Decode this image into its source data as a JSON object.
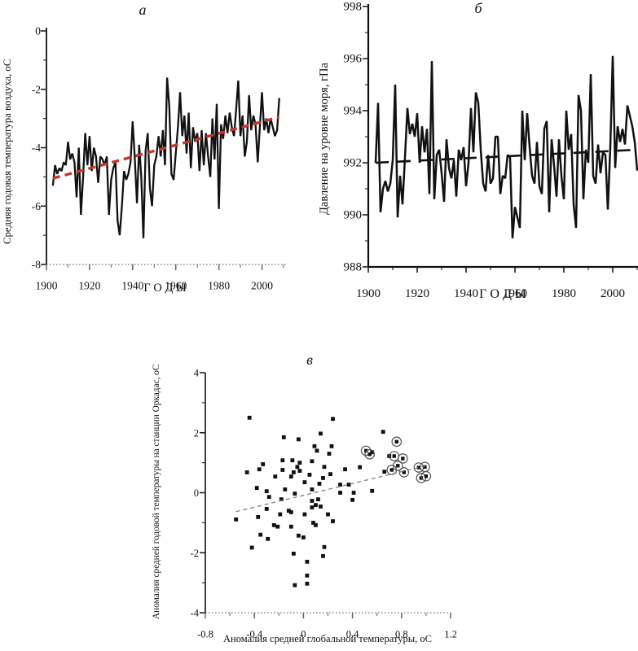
{
  "figure": {
    "background": "#ffffff"
  },
  "chart_data": [
    {
      "id": "a",
      "type": "line",
      "title": "а",
      "xlabel": "Г О Д Ы",
      "ylabel": "Средняя годовая температура воздуха, оС",
      "xlim": [
        1900,
        2010
      ],
      "ylim": [
        -8,
        0
      ],
      "xticks": [
        1900,
        1920,
        1940,
        1960,
        1980,
        2000
      ],
      "yticks": [
        0,
        -2,
        -4,
        -6,
        -8
      ],
      "grid": false,
      "legend": "none",
      "x_start": 1903,
      "x_step": 1,
      "series": [
        {
          "name": "annual-mean-air-temperature",
          "color": "#111111",
          "values": [
            -5.3,
            -4.6,
            -4.9,
            -4.7,
            -4.8,
            -4.5,
            -4.6,
            -3.8,
            -4.4,
            -4.2,
            -4.5,
            -5.7,
            -4.0,
            -6.3,
            -5.0,
            -3.5,
            -4.6,
            -3.6,
            -4.8,
            -4.0,
            -4.3,
            -5.2,
            -4.3,
            -4.4,
            -4.6,
            -4.3,
            -6.3,
            -5.1,
            -4.7,
            -4.5,
            -6.5,
            -7.0,
            -6.0,
            -4.8,
            -5.1,
            -4.9,
            -4.5,
            -3.1,
            -4.4,
            -5.9,
            -3.9,
            -5.0,
            -7.1,
            -4.1,
            -3.5,
            -5.4,
            -6.0,
            -4.6,
            -4.3,
            -3.6,
            -4.3,
            -3.4,
            -4.6,
            -1.6,
            -2.6,
            -4.9,
            -5.1,
            -4.2,
            -3.3,
            -2.1,
            -3.6,
            -2.9,
            -4.2,
            -2.8,
            -4.7,
            -3.3,
            -3.8,
            -3.5,
            -4.8,
            -3.4,
            -4.6,
            -3.5,
            -4.3,
            -5.0,
            -3.0,
            -4.4,
            -2.5,
            -6.1,
            -3.2,
            -3.7,
            -2.9,
            -3.5,
            -2.8,
            -3.3,
            -3.6,
            -2.7,
            -1.7,
            -3.6,
            -2.9,
            -4.3,
            -3.8,
            -2.2,
            -3.4,
            -2.9,
            -3.2,
            -4.5,
            -3.3,
            -2.1,
            -3.4,
            -3.0,
            -3.5,
            -3.0,
            -3.3,
            -3.6,
            -3.4,
            -2.3
          ]
        }
      ],
      "trend": {
        "name": "linear-trend",
        "color": "#c0392b",
        "x": [
          1903,
          2008
        ],
        "y": [
          -5.05,
          -2.95
        ]
      }
    },
    {
      "id": "b",
      "type": "line",
      "title": "б",
      "xlabel": "Г О Д Ы",
      "ylabel": "Давление на уровне моря, гПа",
      "xlim": [
        1900,
        2010
      ],
      "ylim": [
        988,
        998
      ],
      "xticks": [
        1900,
        1920,
        1940,
        1960,
        1980,
        2000
      ],
      "yticks": [
        998,
        996,
        994,
        992,
        990,
        988
      ],
      "grid": false,
      "legend": "none",
      "x_start": 1903,
      "x_step": 1,
      "series": [
        {
          "name": "sea-level-pressure",
          "color": "#111111",
          "values": [
            992.0,
            994.3,
            990.1,
            991.0,
            991.3,
            990.9,
            991.2,
            992.1,
            995.0,
            989.9,
            991.5,
            990.4,
            992.2,
            994.1,
            993.1,
            993.5,
            993.0,
            993.9,
            992.0,
            993.4,
            992.4,
            993.3,
            990.8,
            995.9,
            990.6,
            992.3,
            992.5,
            991.6,
            990.5,
            992.9,
            991.8,
            991.4,
            992.1,
            990.7,
            992.5,
            992.1,
            992.6,
            991.1,
            992.0,
            994.1,
            992.4,
            994.7,
            994.3,
            992.5,
            991.2,
            990.9,
            992.3,
            991.2,
            991.4,
            993.0,
            993.0,
            990.8,
            991.5,
            991.4,
            992.3,
            992.2,
            989.1,
            990.3,
            989.9,
            989.5,
            994.0,
            992.1,
            993.9,
            992.6,
            991.5,
            991.2,
            992.8,
            991.1,
            990.8,
            993.3,
            993.6,
            990.1,
            992.9,
            991.9,
            990.7,
            992.9,
            991.5,
            990.6,
            994.0,
            992.5,
            993.1,
            990.4,
            989.5,
            994.6,
            994.0,
            990.6,
            992.5,
            992.0,
            995.4,
            991.5,
            991.2,
            992.7,
            991.6,
            992.4,
            992.3,
            990.2,
            992.6,
            996.1,
            991.8,
            993.4,
            992.8,
            993.3,
            992.7,
            994.2,
            993.8,
            993.4,
            992.8,
            991.7
          ]
        }
      ],
      "trend": {
        "name": "linear-trend",
        "color": "#111111",
        "x": [
          1903,
          2010
        ],
        "y": [
          992.0,
          992.5
        ]
      }
    },
    {
      "id": "v",
      "type": "scatter",
      "title": "в",
      "xlabel": "Аномалия средней глобальной температуры, оС",
      "ylabel": "Аномалия средней годовой температуры на станции Оркадас, оС",
      "xlim": [
        -0.8,
        1.2
      ],
      "ylim": [
        -4,
        4
      ],
      "xticks": [
        -0.8,
        -0.4,
        0,
        0.4,
        0.8,
        1.2
      ],
      "yticks": [
        4,
        2,
        0,
        -2,
        -4
      ],
      "grid": false,
      "legend": "none",
      "colors": {
        "point": "#111111",
        "ring": "#555555"
      },
      "points": [
        [
          -0.55,
          -0.89
        ],
        [
          -0.46,
          0.68
        ],
        [
          -0.44,
          2.5
        ],
        [
          -0.42,
          -1.83
        ],
        [
          -0.38,
          0.16
        ],
        [
          -0.37,
          -0.81
        ],
        [
          -0.36,
          0.78
        ],
        [
          -0.35,
          -1.4
        ],
        [
          -0.33,
          0.95
        ],
        [
          -0.3,
          0.05
        ],
        [
          -0.3,
          -0.54
        ],
        [
          -0.29,
          -1.54
        ],
        [
          -0.28,
          -0.14
        ],
        [
          -0.24,
          -1.08
        ],
        [
          -0.23,
          0.54
        ],
        [
          -0.21,
          -1.13
        ],
        [
          -0.19,
          -0.72
        ],
        [
          -0.18,
          -0.22
        ],
        [
          -0.17,
          1.08
        ],
        [
          -0.17,
          0.76
        ],
        [
          -0.16,
          1.85
        ],
        [
          -0.15,
          0.11
        ],
        [
          -0.12,
          -0.6
        ],
        [
          -0.1,
          0.54
        ],
        [
          -0.1,
          -0.65
        ],
        [
          -0.1,
          -1.13
        ],
        [
          -0.09,
          1.08
        ],
        [
          -0.08,
          0.68
        ],
        [
          -0.08,
          -2.03
        ],
        [
          -0.07,
          -0.03
        ],
        [
          -0.07,
          -3.08
        ],
        [
          -0.05,
          0.86
        ],
        [
          -0.04,
          1.78
        ],
        [
          -0.04,
          -1.43
        ],
        [
          -0.03,
          1.0
        ],
        [
          -0.03,
          0.73
        ],
        [
          0,
          -1.49
        ],
        [
          0.01,
          -0.72
        ],
        [
          0.01,
          0.35
        ],
        [
          0.03,
          -2.3
        ],
        [
          0.03,
          -2.76
        ],
        [
          0.03,
          -3.03
        ],
        [
          0.05,
          0.6
        ],
        [
          0.07,
          1.05
        ],
        [
          0.07,
          0.11
        ],
        [
          0.07,
          -0.27
        ],
        [
          0.07,
          -0.49
        ],
        [
          0.08,
          -1.0
        ],
        [
          0.09,
          1.55
        ],
        [
          0.1,
          -0.41
        ],
        [
          0.1,
          -1.08
        ],
        [
          0.11,
          1.4
        ],
        [
          0.12,
          -0.22
        ],
        [
          0.13,
          0.3
        ],
        [
          0.14,
          1.97
        ],
        [
          0.14,
          -0.46
        ],
        [
          0.16,
          0.49
        ],
        [
          0.16,
          -2.11
        ],
        [
          0.17,
          0.86
        ],
        [
          0.17,
          -1.81
        ],
        [
          0.2,
          -0.72
        ],
        [
          0.21,
          1.3
        ],
        [
          0.22,
          0.62
        ],
        [
          0.23,
          1.55
        ],
        [
          0.24,
          2.46
        ],
        [
          0.24,
          -0.95
        ],
        [
          0.3,
          0.27
        ],
        [
          0.3,
          0.0
        ],
        [
          0.34,
          0.78
        ],
        [
          0.37,
          0.27
        ],
        [
          0.4,
          -0.24
        ],
        [
          0.41,
          0.0
        ],
        [
          0.46,
          0.85
        ],
        [
          0.56,
          0.06
        ],
        [
          0.56,
          1.35
        ],
        [
          0.65,
          2.03
        ],
        [
          0.66,
          0.7
        ],
        [
          0.7,
          1.22
        ]
      ],
      "circled_points": [
        [
          0.51,
          1.4
        ],
        [
          0.54,
          1.28
        ],
        [
          0.72,
          0.76
        ],
        [
          0.74,
          1.22
        ],
        [
          0.76,
          1.7
        ],
        [
          0.77,
          0.9
        ],
        [
          0.81,
          1.14
        ],
        [
          0.82,
          0.68
        ],
        [
          0.94,
          0.84
        ],
        [
          0.96,
          0.49
        ],
        [
          0.99,
          0.86
        ],
        [
          1.0,
          0.55
        ]
      ],
      "trend": {
        "name": "linear-regression",
        "color": "#808080",
        "x": [
          -0.55,
          1.02
        ],
        "y": [
          -0.63,
          0.92
        ]
      }
    }
  ]
}
